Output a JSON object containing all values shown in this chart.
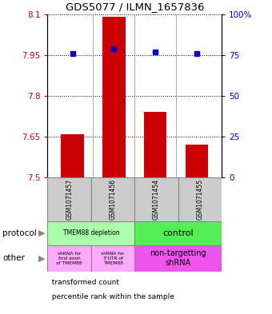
{
  "title": "GDS5077 / ILMN_1657836",
  "samples": [
    "GSM1071457",
    "GSM1071456",
    "GSM1071454",
    "GSM1071455"
  ],
  "bar_values": [
    7.66,
    8.09,
    7.74,
    7.62
  ],
  "dot_values": [
    76,
    79,
    77,
    76
  ],
  "ylim_left": [
    7.5,
    8.1
  ],
  "ylim_right": [
    0,
    100
  ],
  "yticks_left": [
    7.5,
    7.65,
    7.8,
    7.95,
    8.1
  ],
  "yticks_right": [
    0,
    25,
    50,
    75,
    100
  ],
  "ytick_labels_left": [
    "7.5",
    "7.65",
    "7.8",
    "7.95",
    "8.1"
  ],
  "ytick_labels_right": [
    "0",
    "25",
    "50",
    "75",
    "100%"
  ],
  "bar_color": "#cc0000",
  "dot_color": "#0000cc",
  "protocol_labels": [
    "TMEM88 depletion",
    "control"
  ],
  "other_labels": [
    "shRNA for\nfirst exon\nof TMEM88",
    "shRNA for\n3'UTR of\nTMEM88",
    "non-targetting\nshRNA"
  ],
  "protocol_color_left": "#aaffaa",
  "protocol_color_right": "#55ee55",
  "other_color_left": "#ffaaff",
  "other_color_right": "#ee55ee",
  "sample_bg_color": "#cccccc",
  "legend_red": "transformed count",
  "legend_blue": "percentile rank within the sample",
  "row_label_protocol": "protocol",
  "row_label_other": "other"
}
